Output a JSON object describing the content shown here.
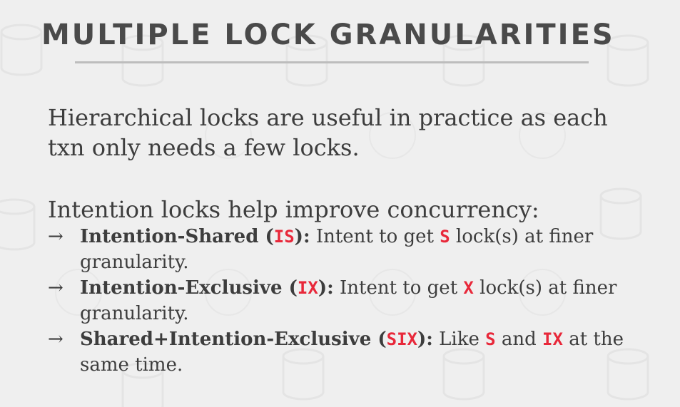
{
  "title": "MULTIPLE LOCK GRANULARITIES",
  "paragraph1": "Hierarchical locks are useful in practice as each txn only needs a few locks.",
  "paragraph2": "Intention locks help improve concurrency:",
  "arrow": "→",
  "bullets": [
    {
      "term": "Intention-Shared",
      "open": " (",
      "abbr": "IS",
      "close": "):",
      "t1": " Intent to get ",
      "c1": "S",
      "t2": " lock(s) at finer granularity."
    },
    {
      "term": "Intention-Exclusive",
      "open": " (",
      "abbr": "IX",
      "close": "):",
      "t1": " Intent to get ",
      "c1": "X",
      "t2": " lock(s) at finer granularity."
    },
    {
      "term": "Shared+Intention-Exclusive",
      "open": " (",
      "abbr": "SIX",
      "close": "):",
      "t1": " Like ",
      "c1": "S",
      "t2": " and ",
      "c2": "IX",
      "t3": " at the same time."
    }
  ],
  "colors": {
    "background": "#efefef",
    "text": "#3d3d3d",
    "accent": "#e8283a",
    "rule": "#bdbdbd"
  },
  "icons": {
    "background": "database-cylinder-icon"
  }
}
